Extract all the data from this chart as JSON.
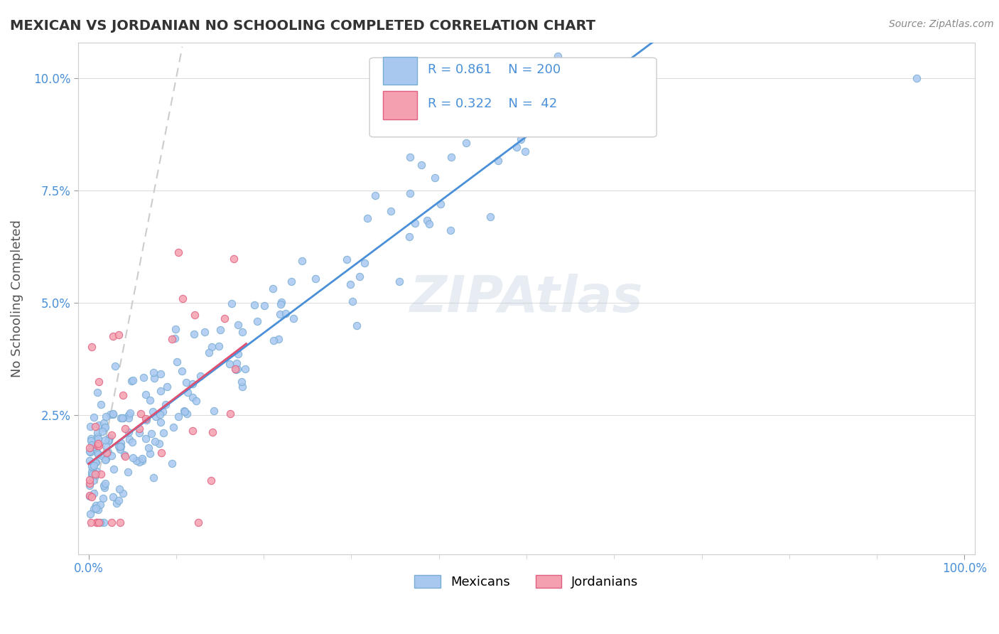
{
  "title": "MEXICAN VS JORDANIAN NO SCHOOLING COMPLETED CORRELATION CHART",
  "source": "Source: ZipAtlas.com",
  "ylabel": "No Schooling Completed",
  "watermark": "ZIPAtlas",
  "legend_r_mexican": "0.861",
  "legend_n_mexican": "200",
  "legend_r_jordanian": "0.322",
  "legend_n_jordanian": "42",
  "mexican_color": "#a8c8f0",
  "mexican_edge": "#7aadd4",
  "jordanian_color": "#f5a0b0",
  "jordanian_edge": "#e06080",
  "trendline_mexican_color": "#4a90d9",
  "trendline_jordanian_color": "#e05070",
  "diagonal_color": "#cccccc",
  "background_color": "#ffffff",
  "grid_color": "#dddddd"
}
